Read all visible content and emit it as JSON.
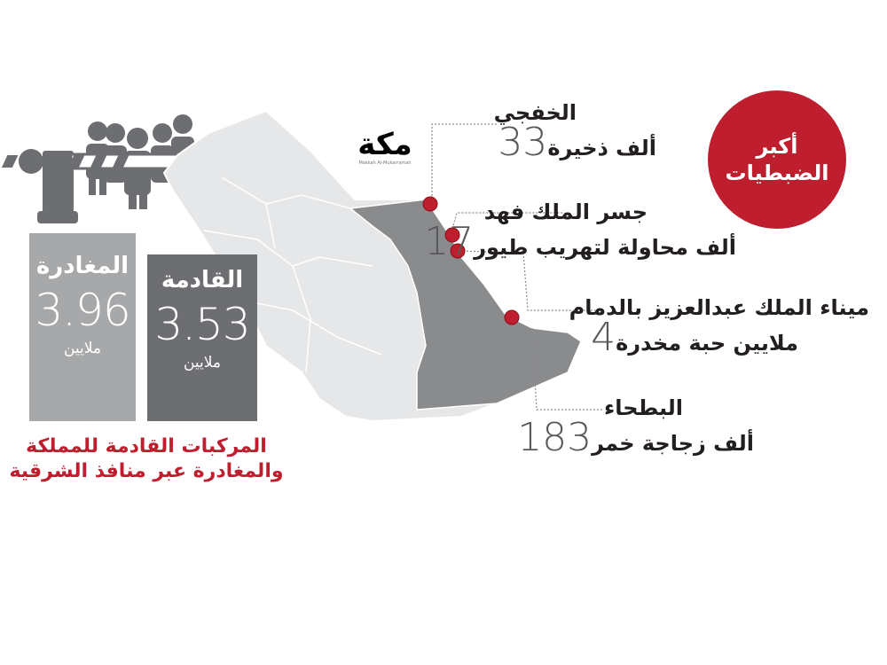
{
  "logo": {
    "text": "مكة",
    "tagline": "Makkah Al-Mukarramah"
  },
  "vehicles": {
    "departing": {
      "label": "المغادرة",
      "value": "3.96",
      "unit": "ملايين",
      "color": "#a7a8aa"
    },
    "arriving": {
      "label": "القادمة",
      "value": "3.53",
      "unit": "ملايين",
      "color": "#6d6e71"
    },
    "caption_line1": "المركبات القادمة للمملكة",
    "caption_line2": "والمغادرة عبر منافذ الشرقية"
  },
  "badge": {
    "line1": "أكبر",
    "line2": "الضبطيات",
    "color": "#be1e2d"
  },
  "seizures": [
    {
      "place": "الخفجي",
      "number": "33",
      "desc": "ألف ذخيرة"
    },
    {
      "place": "جسر الملك فهد",
      "number": "17",
      "desc": "ألف محاولة لتهريب طيور"
    },
    {
      "place": "ميناء الملك عبدالعزيز بالدمام",
      "number": "4",
      "desc": "ملايين حبة مخدرة"
    },
    {
      "place": "البطحاء",
      "number": "183",
      "desc": "ألف زجاجة خمر"
    }
  ],
  "map": {
    "region_color": "#e6e7e8",
    "eastern_color": "#8a8b8d",
    "marker_color": "#be1e2d"
  }
}
